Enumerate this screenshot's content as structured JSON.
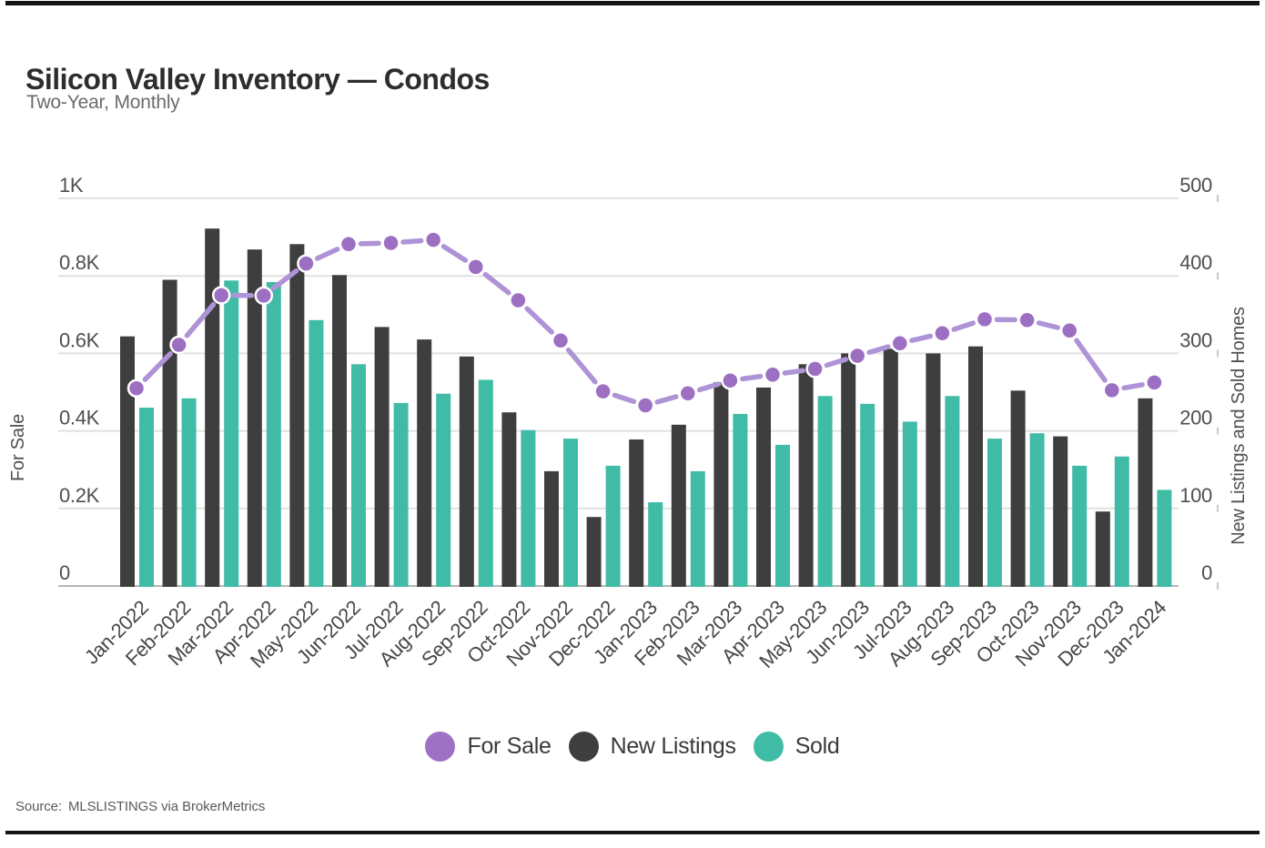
{
  "header": {
    "title": "Silicon Valley Inventory — Condos",
    "subtitle": "Two-Year, Monthly"
  },
  "chart_data": {
    "type": "bar",
    "subtype": "grouped bars with overlaid line (dual axis)",
    "categories": [
      "Jan-2022",
      "Feb-2022",
      "Mar-2022",
      "Apr-2022",
      "May-2022",
      "Jun-2022",
      "Jul-2022",
      "Aug-2022",
      "Sep-2022",
      "Oct-2022",
      "Nov-2022",
      "Dec-2022",
      "Jan-2023",
      "Feb-2023",
      "Mar-2023",
      "Apr-2023",
      "May-2023",
      "Jun-2023",
      "Jul-2023",
      "Aug-2023",
      "Sep-2023",
      "Oct-2023",
      "Nov-2023",
      "Dec-2023",
      "Jan-2024"
    ],
    "series": [
      {
        "name": "For Sale",
        "type": "line",
        "axis": "left",
        "color": "#9c6fc2",
        "line_color": "#ae93d6",
        "values": [
          510,
          622,
          750,
          749,
          832,
          882,
          885,
          893,
          823,
          737,
          633,
          502,
          466,
          497,
          530,
          545,
          560,
          594,
          626,
          652,
          688,
          686,
          659,
          505,
          525
        ]
      },
      {
        "name": "New Listings",
        "type": "bar",
        "axis": "right",
        "color": "#3e3e3e",
        "values": [
          322,
          395,
          461,
          434,
          441,
          401,
          334,
          318,
          296,
          224,
          148,
          89,
          189,
          208,
          263,
          256,
          286,
          300,
          306,
          300,
          309,
          252,
          193,
          96,
          242
        ]
      },
      {
        "name": "Sold",
        "type": "bar",
        "axis": "right",
        "color": "#40bba6",
        "values": [
          230,
          242,
          394,
          392,
          343,
          286,
          236,
          248,
          266,
          201,
          190,
          155,
          108,
          148,
          222,
          182,
          245,
          235,
          212,
          245,
          190,
          197,
          155,
          167,
          124
        ]
      }
    ],
    "axes": {
      "left": {
        "title": "For Sale",
        "min": 0,
        "max": 1000,
        "tick_labels": [
          "0",
          "0.2K",
          "0.4K",
          "0.6K",
          "0.8K",
          "1K"
        ]
      },
      "right": {
        "title": "New Listings and Sold Homes",
        "min": 0,
        "max": 500,
        "tick_labels": [
          "0",
          "100",
          "200",
          "300",
          "400",
          "500"
        ]
      }
    },
    "grid": true,
    "legend_position": "bottom"
  },
  "legend": {
    "items": [
      {
        "label": "For Sale",
        "color": "#9f71c5"
      },
      {
        "label": "New Listings",
        "color": "#3e3e3e"
      },
      {
        "label": "Sold",
        "color": "#40bba6"
      }
    ]
  },
  "source": {
    "label": "Source:",
    "text": "MLSLISTINGS via BrokerMetrics"
  },
  "colors": {
    "grid": "#e1e1e1",
    "baseline": "#b5b5b5",
    "tick_mark": "#c9c9c9",
    "point_ring": "#ffffff"
  }
}
